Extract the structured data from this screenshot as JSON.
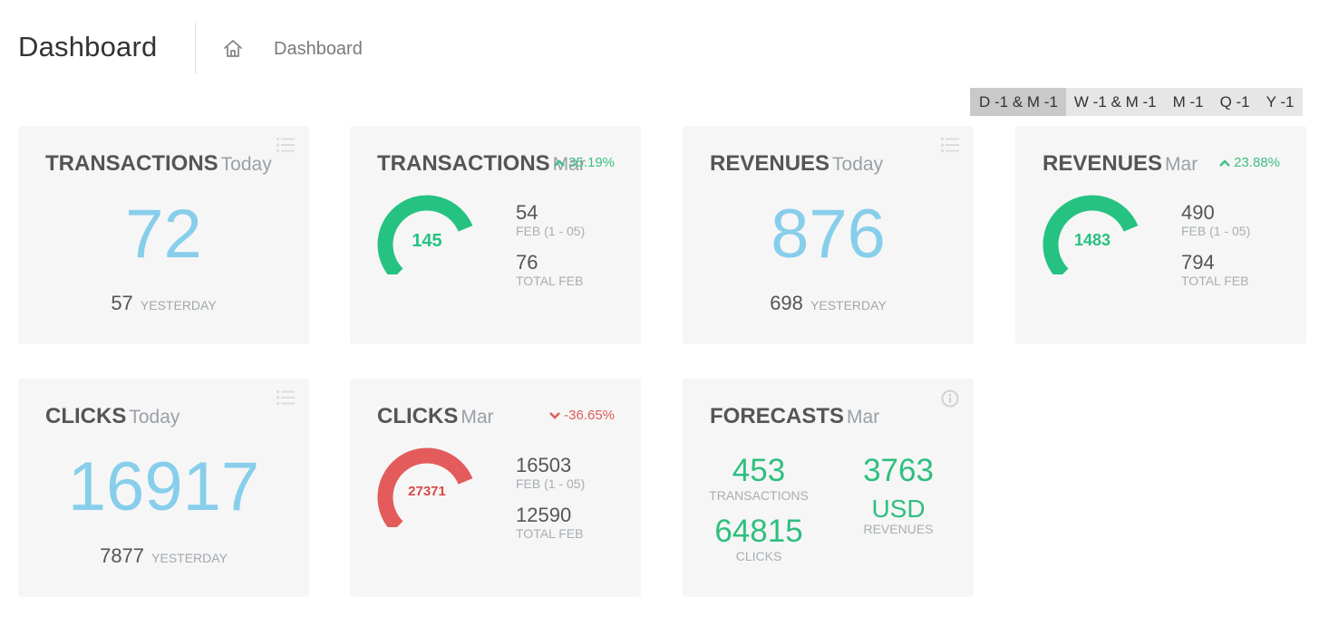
{
  "header": {
    "title": "Dashboard",
    "breadcrumb": "Dashboard"
  },
  "periods": [
    "D -1 & M -1",
    "W -1 & M -1",
    "M -1",
    "Q -1",
    "Y -1"
  ],
  "active_period": "D -1 & M -1",
  "colors": {
    "accent_blue": "#87ceeb",
    "positive": "#2fbf7f",
    "negative": "#e05a5a",
    "card_bg": "#f6f6f6"
  },
  "cards": {
    "transactions_today": {
      "title": "TRANSACTIONS",
      "subtitle": "Today",
      "value": "72",
      "yesterday_value": "57",
      "yesterday_label": "YESTERDAY",
      "icon": "list-icon"
    },
    "transactions_month": {
      "title": "TRANSACTIONS",
      "subtitle": "Mar",
      "change": "35.19%",
      "change_direction": "up",
      "gauge_value": "145",
      "gauge_fill": 0.75,
      "stat1_value": "54",
      "stat1_label": "FEB (1 - 05)",
      "stat2_value": "76",
      "stat2_label": "TOTAL FEB"
    },
    "revenues_today": {
      "title": "REVENUES",
      "subtitle": "Today",
      "value": "876",
      "yesterday_value": "698",
      "yesterday_label": "YESTERDAY",
      "icon": "list-icon"
    },
    "revenues_month": {
      "title": "REVENUES",
      "subtitle": "Mar",
      "change": "23.88%",
      "change_direction": "up",
      "gauge_value": "1483",
      "gauge_fill": 0.75,
      "stat1_value": "490",
      "stat1_label": "FEB (1 - 05)",
      "stat2_value": "794",
      "stat2_label": "TOTAL FEB"
    },
    "clicks_today": {
      "title": "CLICKS",
      "subtitle": "Today",
      "value": "16917",
      "yesterday_value": "7877",
      "yesterday_label": "YESTERDAY",
      "icon": "list-icon"
    },
    "clicks_month": {
      "title": "CLICKS",
      "subtitle": "Mar",
      "change": "-36.65%",
      "change_direction": "down",
      "gauge_value": "27371",
      "gauge_fill": 0.75,
      "stat1_value": "16503",
      "stat1_label": "FEB (1 - 05)",
      "stat2_value": "12590",
      "stat2_label": "TOTAL FEB"
    },
    "forecasts": {
      "title": "FORECASTS",
      "subtitle": "Mar",
      "icon": "info-icon",
      "transactions_value": "453",
      "transactions_label": "TRANSACTIONS",
      "revenues_value": "3763",
      "revenues_currency": "USD",
      "revenues_label": "REVENUES",
      "clicks_value": "64815",
      "clicks_label": "CLICKS"
    }
  }
}
